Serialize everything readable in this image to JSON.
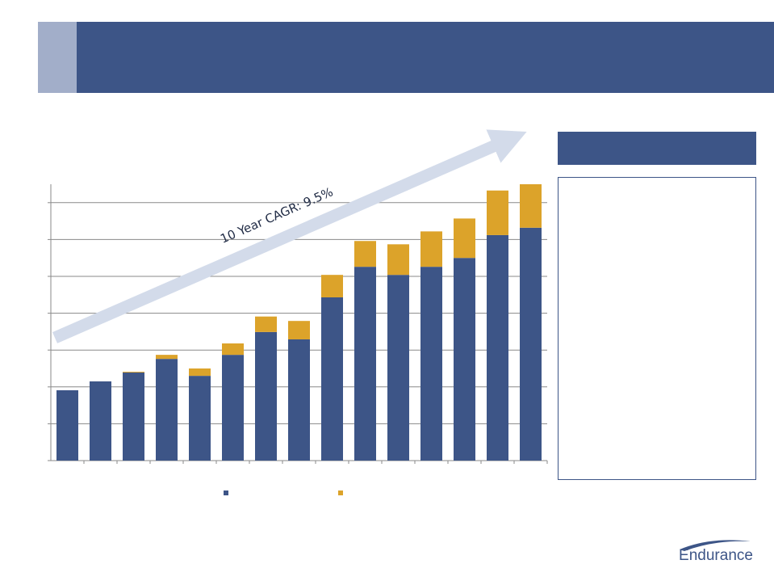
{
  "annotation": "10 Year CAGR: 9.5%",
  "logo_text": "Endurance",
  "chart_data": {
    "type": "stacked_bar",
    "categories": [
      null,
      null,
      null,
      null,
      null,
      null,
      null,
      null,
      null,
      null,
      null,
      null,
      null,
      null,
      null
    ],
    "series": [
      {
        "color": "#3d5587",
        "values": [
          1.91,
          2.15,
          2.39,
          2.76,
          2.3,
          2.87,
          3.49,
          3.29,
          4.43,
          5.26,
          5.04,
          5.26,
          5.5,
          6.12,
          6.32
        ]
      },
      {
        "color": "#dca32a",
        "values": [
          0,
          0,
          0.02,
          0.11,
          0.2,
          0.31,
          0.42,
          0.5,
          0.61,
          0.7,
          0.83,
          0.96,
          1.07,
          1.21,
          1.18
        ]
      }
    ],
    "ylim": [
      0,
      7.5
    ],
    "yticks": [
      0,
      1,
      2,
      3,
      4,
      5,
      6,
      7
    ],
    "grid": true
  }
}
